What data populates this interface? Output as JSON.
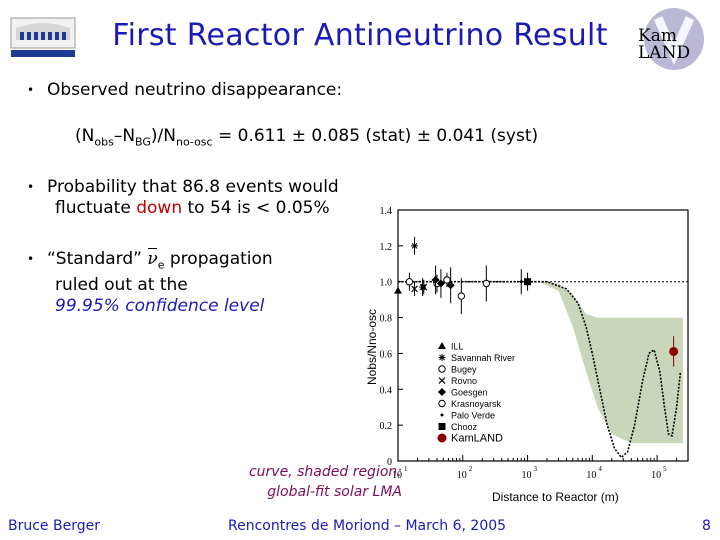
{
  "title": "First Reactor Antineutrino Result",
  "kamland_logo": {
    "line1": "Kam",
    "line2": "LAND"
  },
  "bullets": {
    "b1": "Observed neutrino disappearance:",
    "formula": {
      "N1": "N",
      "obs": "obs",
      "minus": "–N",
      "bg": "BG",
      "slash": ")/N",
      "noosc": "no-osc",
      "value": " = 0.611 ± 0.085 (stat) ± 0.041 (syst)"
    },
    "b2_pre": "Probability that 86.8 events would",
    "b2_line2_pre": "fluctuate ",
    "b2_down": "down",
    "b2_line2_post": " to 54 is < 0.05%",
    "b3_pre": "“Standard” ",
    "b3_nu": "ν",
    "b3_e": "e",
    "b3_post": " propagation",
    "b3_line2": "ruled out at the",
    "b3_line3": "99.95% confidence level"
  },
  "caption": {
    "line1": "curve, shaded region:",
    "line2": "global-fit solar LMA"
  },
  "footer": {
    "left": "Bruce Berger",
    "center": "Rencontres de Moriond – March 6, 2005",
    "page": "8"
  },
  "chart_data": {
    "type": "scatter",
    "xscale": "log",
    "xlabel": "Distance to Reactor (m)",
    "ylabel": "Nobs/Nno-osc",
    "xlim": [
      10,
      300000
    ],
    "ylim": [
      0,
      1.4
    ],
    "yticks": [
      "0",
      "0.2",
      "0.4",
      "0.6",
      "0.8",
      "1.0",
      "1.2",
      "1.4"
    ],
    "xticks": [
      {
        "base": "10",
        "exp": "1",
        "x": 10
      },
      {
        "base": "10",
        "exp": "2",
        "x": 100
      },
      {
        "base": "10",
        "exp": "3",
        "x": 1000
      },
      {
        "base": "10",
        "exp": "4",
        "x": 10000
      },
      {
        "base": "10",
        "exp": "5",
        "x": 100000
      }
    ],
    "legend": [
      "ILL",
      "Savannah River",
      "Bugey",
      "Rovno",
      "Goesgen",
      "Krasnoyarsk",
      "Palo Verde",
      "Chooz",
      "KamLAND"
    ],
    "colors": {
      "kamland": "#8b0000",
      "band": "#c9d6b9",
      "axis": "#000000"
    },
    "series": [
      {
        "name": "ILL",
        "marker": "triangle",
        "points": [
          {
            "x": 9,
            "y": 0.95,
            "err": 0.12
          }
        ]
      },
      {
        "name": "Savannah River",
        "marker": "asterisk",
        "points": [
          {
            "x": 18,
            "y": 1.2,
            "err": 0.05
          },
          {
            "x": 24,
            "y": 0.97,
            "err": 0.05
          }
        ]
      },
      {
        "name": "Bugey",
        "marker": "circle-open",
        "points": [
          {
            "x": 15,
            "y": 1.0,
            "err": 0.05
          },
          {
            "x": 40,
            "y": 0.99,
            "err": 0.05
          },
          {
            "x": 95,
            "y": 0.92,
            "err": 0.1
          }
        ]
      },
      {
        "name": "Rovno",
        "marker": "x",
        "points": [
          {
            "x": 18,
            "y": 0.96,
            "err": 0.04
          },
          {
            "x": 25,
            "y": 0.97,
            "err": 0.04
          }
        ]
      },
      {
        "name": "Goesgen",
        "marker": "diamond",
        "points": [
          {
            "x": 38,
            "y": 1.01,
            "err": 0.08
          },
          {
            "x": 46,
            "y": 0.99,
            "err": 0.08
          },
          {
            "x": 65,
            "y": 0.98,
            "err": 0.1
          }
        ]
      },
      {
        "name": "Krasnoyarsk",
        "marker": "circle-open",
        "points": [
          {
            "x": 57,
            "y": 1.01,
            "err": 0.04
          },
          {
            "x": 231,
            "y": 0.99,
            "err": 0.1
          }
        ]
      },
      {
        "name": "Palo Verde",
        "marker": "dot",
        "points": [
          {
            "x": 800,
            "y": 1.0,
            "err": 0.07
          }
        ]
      },
      {
        "name": "Chooz",
        "marker": "square",
        "points": [
          {
            "x": 1000,
            "y": 1.0,
            "err": 0.05
          }
        ]
      },
      {
        "name": "KamLAND",
        "marker": "circle-filled",
        "points": [
          {
            "x": 180000,
            "y": 0.611,
            "err": 0.085
          }
        ]
      }
    ],
    "band_upper": [
      [
        1500,
        1.0
      ],
      [
        3000,
        0.99
      ],
      [
        5000,
        0.93
      ],
      [
        8000,
        0.82
      ],
      [
        12000,
        0.8
      ],
      [
        100000,
        0.8
      ],
      [
        250000,
        0.8
      ]
    ],
    "band_lower": [
      [
        250000,
        0.1
      ],
      [
        100000,
        0.1
      ],
      [
        40000,
        0.1
      ],
      [
        20000,
        0.15
      ],
      [
        12000,
        0.3
      ],
      [
        8000,
        0.5
      ],
      [
        5000,
        0.75
      ],
      [
        3000,
        0.95
      ],
      [
        1500,
        1.0
      ]
    ],
    "curve": [
      [
        10,
        1.0
      ],
      [
        1000,
        1.0
      ],
      [
        2000,
        1.0
      ],
      [
        4000,
        0.96
      ],
      [
        6000,
        0.88
      ],
      [
        8000,
        0.75
      ],
      [
        10000,
        0.6
      ],
      [
        13000,
        0.4
      ],
      [
        17000,
        0.2
      ],
      [
        22000,
        0.07
      ],
      [
        28000,
        0.02
      ],
      [
        35000,
        0.05
      ],
      [
        45000,
        0.2
      ],
      [
        60000,
        0.45
      ],
      [
        75000,
        0.6
      ],
      [
        90000,
        0.62
      ],
      [
        110000,
        0.5
      ],
      [
        130000,
        0.3
      ],
      [
        150000,
        0.15
      ],
      [
        170000,
        0.14
      ],
      [
        200000,
        0.3
      ],
      [
        230000,
        0.5
      ]
    ]
  }
}
